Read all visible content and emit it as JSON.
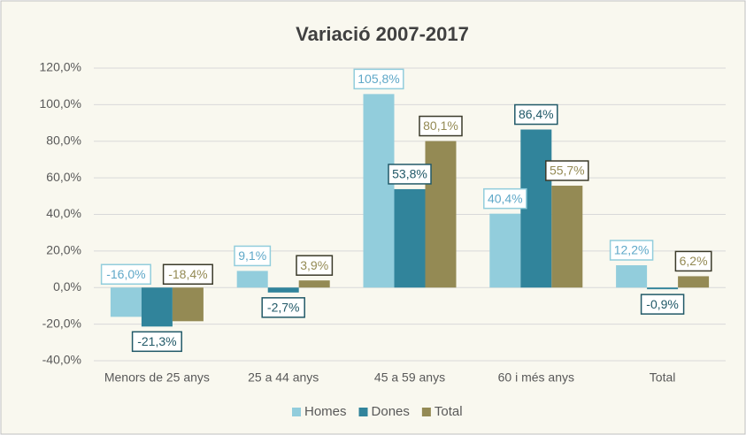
{
  "chart_data": {
    "type": "bar",
    "title": "Variació 2007-2017",
    "categories": [
      "Menors de 25 anys",
      "25 a 44 anys",
      "45 a 59 anys",
      "60 i més anys",
      "Total"
    ],
    "series": [
      {
        "name": "Homes",
        "color": "#92cddc",
        "values": [
          -16.0,
          9.1,
          105.8,
          40.4,
          12.2
        ],
        "value_labels": [
          "-16,0%",
          "9,1%",
          "105,8%",
          "40,4%",
          "12,2%"
        ]
      },
      {
        "name": "Dones",
        "color": "#31849b",
        "values": [
          -21.3,
          -2.7,
          53.8,
          86.4,
          -0.9
        ],
        "value_labels": [
          "-21,3%",
          "-2,7%",
          "53,8%",
          "86,4%",
          "-0,9%"
        ]
      },
      {
        "name": "Total",
        "color": "#948a54",
        "values": [
          -18.4,
          3.9,
          80.1,
          55.7,
          6.2
        ],
        "value_labels": [
          "-18,4%",
          "3,9%",
          "80,1%",
          "55,7%",
          "6,2%"
        ]
      }
    ],
    "ylim": [
      -40,
      120
    ],
    "yticks": [
      {
        "value": -40,
        "label": "-40,0%"
      },
      {
        "value": -20,
        "label": "-20,0%"
      },
      {
        "value": 0,
        "label": "0,0%"
      },
      {
        "value": 20,
        "label": "20,0%"
      },
      {
        "value": 40,
        "label": "40,0%"
      },
      {
        "value": 60,
        "label": "60,0%"
      },
      {
        "value": 80,
        "label": "80,0%"
      },
      {
        "value": 100,
        "label": "100,0%"
      },
      {
        "value": 120,
        "label": "120,0%"
      }
    ],
    "grid": true,
    "legend": "bottom"
  }
}
